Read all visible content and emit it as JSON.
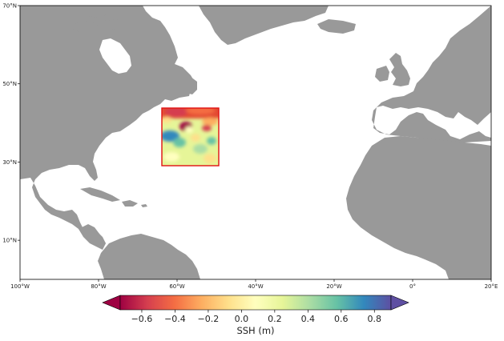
{
  "map": {
    "projection": "PlateCarree",
    "extent_lon": [
      -100,
      20
    ],
    "extent_lat": [
      0,
      70
    ],
    "land_color": "#999999",
    "ocean_color": "#ffffff",
    "lon_ticks": [
      {
        "value": -100,
        "label": "100°W"
      },
      {
        "value": -80,
        "label": "80°W"
      },
      {
        "value": -60,
        "label": "60°W"
      },
      {
        "value": -40,
        "label": "40°W"
      },
      {
        "value": -20,
        "label": "20°W"
      },
      {
        "value": 0,
        "label": "0°"
      },
      {
        "value": 20,
        "label": "20°E"
      }
    ],
    "lat_ticks": [
      {
        "value": 70,
        "label": "70°N"
      },
      {
        "value": 50,
        "label": "50°N"
      },
      {
        "value": 30,
        "label": "30°N"
      },
      {
        "value": 10,
        "label": "10°N"
      }
    ]
  },
  "ssh_field": {
    "region_lon": [
      -64,
      -49.5
    ],
    "region_lat": [
      29,
      43.5
    ],
    "border_color": "#e01010"
  },
  "colorbar": {
    "label": "SSH (m)",
    "colormap": "Spectral",
    "vmin": -0.73,
    "vmax": 0.9,
    "extend": "both",
    "ticks": [
      {
        "value": -0.6,
        "label": "−0.6"
      },
      {
        "value": -0.4,
        "label": "−0.4"
      },
      {
        "value": -0.2,
        "label": "−0.2"
      },
      {
        "value": 0.0,
        "label": "0.0"
      },
      {
        "value": 0.2,
        "label": "0.2"
      },
      {
        "value": 0.4,
        "label": "0.4"
      },
      {
        "value": 0.6,
        "label": "0.6"
      },
      {
        "value": 0.8,
        "label": "0.8"
      }
    ],
    "gradient": [
      "#9e0142",
      "#d53e4f",
      "#f46d43",
      "#fdae61",
      "#fee08b",
      "#ffffbf",
      "#e6f598",
      "#abdda4",
      "#66c2a5",
      "#3288bd",
      "#5e4fa2"
    ]
  }
}
